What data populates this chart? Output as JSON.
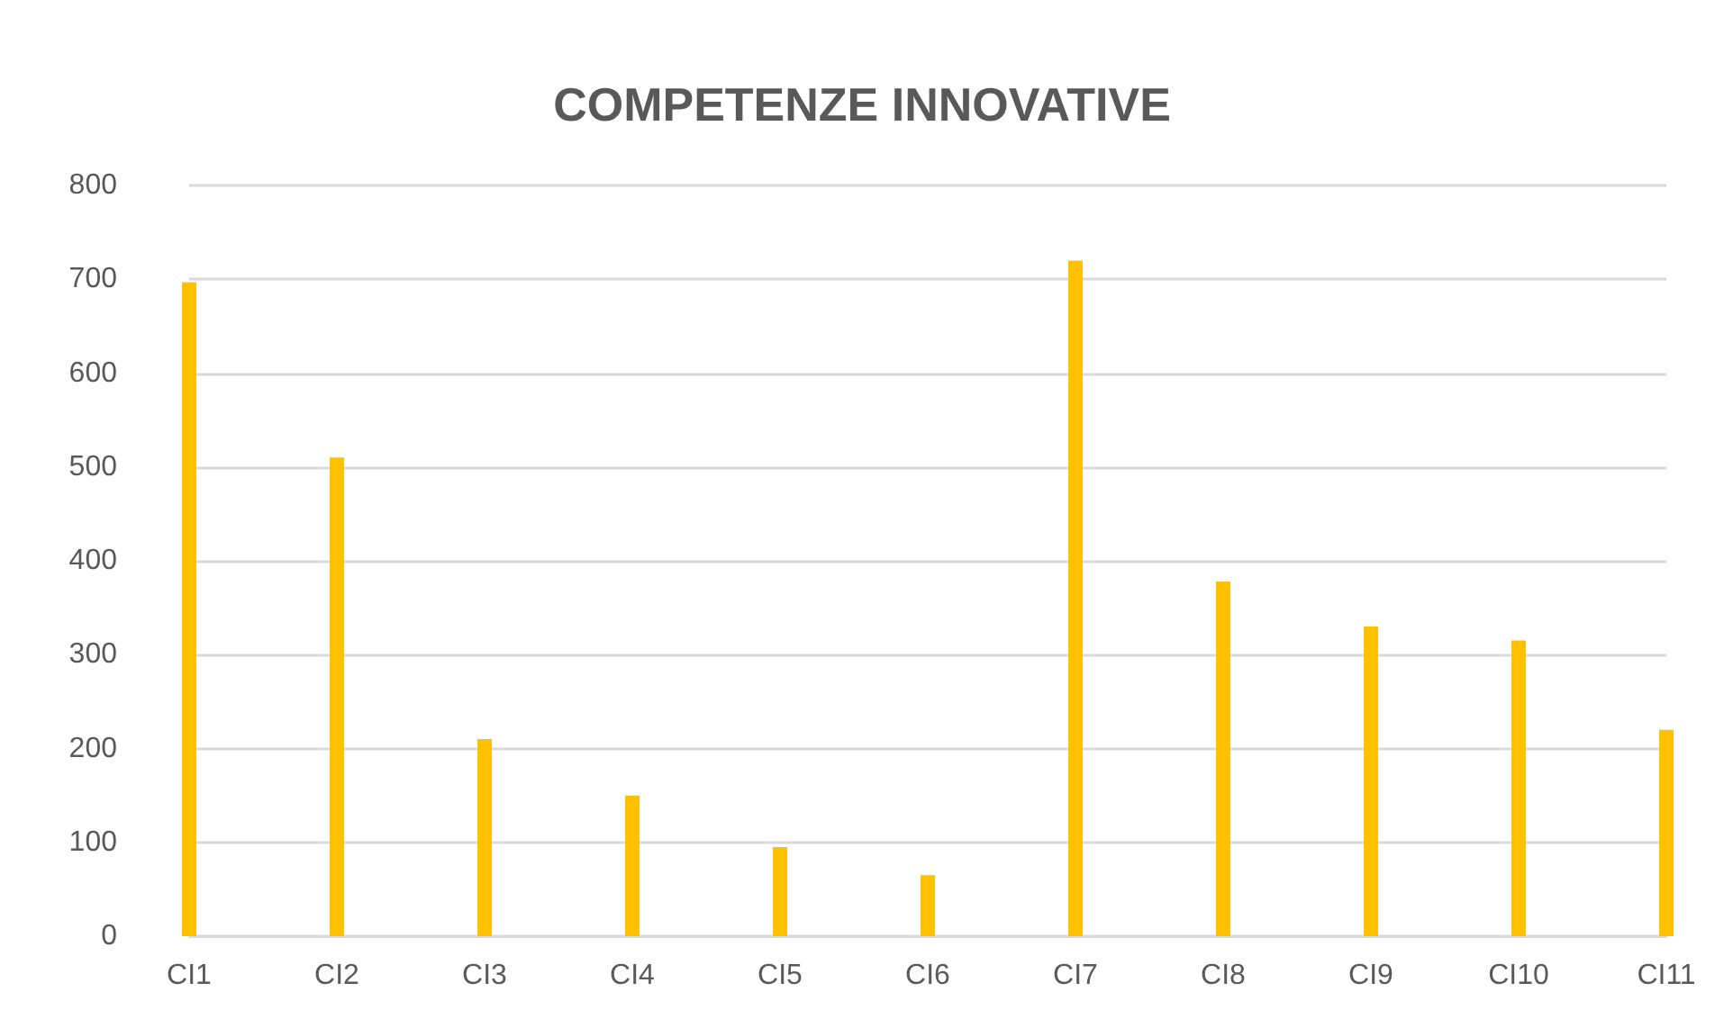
{
  "chart_data": {
    "type": "bar",
    "title": "COMPETENZE INNOVATIVE",
    "categories": [
      "CI1",
      "CI2",
      "CI3",
      "CI4",
      "CI5",
      "CI6",
      "CI7",
      "CI8",
      "CI9",
      "CI10",
      "CI11"
    ],
    "values": [
      697,
      510,
      210,
      150,
      95,
      65,
      720,
      378,
      330,
      315,
      220
    ],
    "color": "#ffc000",
    "ylim": [
      0,
      800
    ],
    "yticks": [
      0,
      100,
      200,
      300,
      400,
      500,
      600,
      700,
      800
    ],
    "grid": "y"
  }
}
